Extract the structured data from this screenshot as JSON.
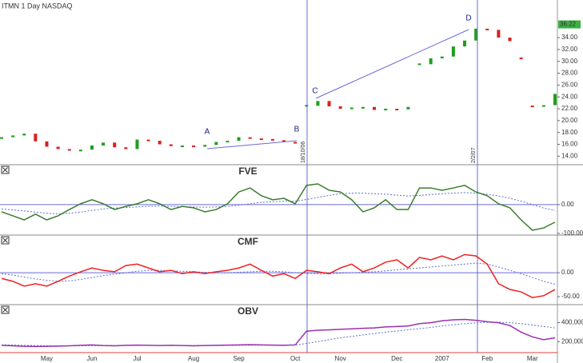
{
  "chart_data": [
    {
      "type": "bar",
      "title": "ITMN 1 Day NASDAQ",
      "categories": [
        null,
        null,
        null,
        null,
        "May",
        null,
        null,
        null,
        "Jun",
        null,
        null,
        null,
        "Jul",
        null,
        null,
        null,
        null,
        "Aug",
        null,
        null,
        null,
        "Sep",
        null,
        null,
        null,
        null,
        "Oct",
        null,
        null,
        null,
        "Nov",
        null,
        null,
        null,
        null,
        "Dec",
        null,
        null,
        null,
        "2007",
        null,
        null,
        null,
        "Feb",
        null,
        null,
        null,
        "Mar",
        null,
        null
      ],
      "values": [
        17.2,
        17.5,
        17.8,
        16.5,
        15.6,
        15.2,
        15.0,
        15.1,
        15.8,
        16.3,
        15.5,
        15.2,
        16.8,
        16.6,
        16.0,
        15.7,
        15.8,
        15.6,
        15.9,
        16.4,
        16.6,
        17.2,
        17.0,
        16.9,
        16.7,
        16.4,
        16.2,
        22.5,
        23.3,
        22.4,
        22.0,
        22.2,
        22.3,
        21.8,
        22.0,
        21.9,
        22.3,
        29.5,
        30.5,
        30.8,
        32.5,
        33.5,
        35.5,
        35.3,
        34.0,
        33.4,
        30.5,
        22.4,
        22.6,
        24.5
      ],
      "up_color": "#1f9e1f",
      "down_color": "#d92020",
      "ylim": [
        12.7,
        40.2
      ],
      "yticks": [
        {
          "value": 14,
          "label": "14.00"
        },
        {
          "value": 16,
          "label": "16.00"
        },
        {
          "value": 18,
          "label": "18.00"
        },
        {
          "value": 20,
          "label": "20.00"
        },
        {
          "value": 22,
          "label": "22.00"
        },
        {
          "value": 24,
          "label": "24.00"
        },
        {
          "value": 26,
          "label": "26.00"
        },
        {
          "value": 28,
          "label": "28.00"
        },
        {
          "value": 30,
          "label": "30.00"
        },
        {
          "value": 32,
          "label": "32.00"
        },
        {
          "value": 34,
          "label": "34.00"
        }
      ],
      "last_price": {
        "value": 36.22,
        "label": "36.22"
      },
      "annotations": [
        "A",
        "B",
        "C",
        "D"
      ],
      "events": [
        "18/10/06",
        "2/2/07"
      ]
    },
    {
      "type": "line",
      "ylim": [
        -103,
        136
      ],
      "ref_line": true,
      "yticks": [
        {
          "value": 0,
          "label": "0.00"
        },
        {
          "value": -100,
          "label": "-100.00"
        }
      ],
      "series": [
        {
          "name": "FVE",
          "color": "#3a7d2c",
          "values": [
            -25,
            -39,
            -53,
            -33,
            -53,
            -39,
            -17,
            3,
            17,
            3,
            -17,
            -6,
            3,
            17,
            3,
            -17,
            -6,
            -11,
            -25,
            -17,
            3,
            44,
            58,
            31,
            17,
            22,
            3,
            67,
            72,
            50,
            44,
            17,
            -25,
            -11,
            17,
            -17,
            -17,
            58,
            58,
            50,
            58,
            67,
            44,
            31,
            3,
            -11,
            -53,
            -89,
            -81,
            -61
          ]
        }
      ],
      "signal": {
        "color": "#5a6fd8",
        "values": [
          -15,
          -18,
          -22,
          -26,
          -30,
          -32,
          -30,
          -26,
          -20,
          -15,
          -12,
          -10,
          -8,
          -6,
          -5,
          -6,
          -7,
          -8,
          -9,
          -8,
          -6,
          -2,
          3,
          8,
          10,
          12,
          12,
          18,
          25,
          32,
          38,
          40,
          40,
          38,
          36,
          33,
          30,
          32,
          35,
          38,
          40,
          42,
          40,
          36,
          30,
          22,
          12,
          0,
          -12,
          -20
        ]
      }
    },
    {
      "type": "line",
      "ylim": [
        -65,
        77
      ],
      "ref_line": true,
      "yticks": [
        {
          "value": 0,
          "label": "0.00"
        },
        {
          "value": -50,
          "label": "-50.00"
        }
      ],
      "series": [
        {
          "name": "CMF",
          "color": "#f02020",
          "values": [
            -12,
            -18,
            -28,
            -23,
            -28,
            -18,
            -7,
            2,
            10,
            5,
            2,
            15,
            18,
            10,
            2,
            5,
            -2,
            2,
            -2,
            2,
            5,
            10,
            18,
            5,
            -7,
            -2,
            -12,
            5,
            2,
            -2,
            10,
            18,
            2,
            10,
            22,
            27,
            10,
            32,
            27,
            35,
            27,
            38,
            35,
            18,
            -23,
            -35,
            -40,
            -52,
            -48,
            -35
          ]
        }
      ],
      "signal": {
        "color": "#5a6fd8",
        "values": [
          -2,
          -5,
          -9,
          -13,
          -16,
          -18,
          -17,
          -14,
          -10,
          -6,
          -3,
          0,
          3,
          5,
          5,
          4,
          3,
          2,
          1,
          0,
          0,
          1,
          2,
          3,
          3,
          2,
          0,
          -1,
          -2,
          -2,
          -1,
          0,
          1,
          2,
          4,
          6,
          8,
          10,
          12,
          14,
          16,
          18,
          20,
          18,
          12,
          5,
          -2,
          -10,
          -18,
          -24
        ]
      }
    },
    {
      "type": "line",
      "ylim": [
        83000,
        583000
      ],
      "ref_line": false,
      "yticks": [
        {
          "value": 200000,
          "label": "200,000"
        },
        {
          "value": 400000,
          "label": "400,000"
        }
      ],
      "series": [
        {
          "name": "OBV",
          "color": "#9b30b0",
          "values": [
            160000,
            155000,
            150000,
            148000,
            150000,
            152000,
            155000,
            160000,
            165000,
            158000,
            155000,
            160000,
            162000,
            160000,
            158000,
            160000,
            158000,
            155000,
            158000,
            160000,
            162000,
            165000,
            168000,
            165000,
            162000,
            160000,
            165000,
            310000,
            320000,
            325000,
            330000,
            335000,
            340000,
            345000,
            355000,
            360000,
            365000,
            390000,
            400000,
            420000,
            430000,
            435000,
            425000,
            410000,
            400000,
            370000,
            300000,
            250000,
            220000,
            240000
          ]
        }
      ],
      "signal": {
        "color": "#5a6fd8",
        "values": [
          165000,
          163000,
          160000,
          158000,
          156000,
          155000,
          155000,
          156000,
          157000,
          158000,
          158000,
          158000,
          159000,
          159000,
          159000,
          159000,
          159000,
          158000,
          158000,
          158000,
          159000,
          160000,
          161000,
          162000,
          162000,
          162000,
          163000,
          180000,
          200000,
          220000,
          240000,
          255000,
          270000,
          285000,
          300000,
          312000,
          325000,
          337000,
          350000,
          365000,
          378000,
          390000,
          398000,
          404000,
          405000,
          400000,
          390000,
          375000,
          360000,
          345000
        ]
      }
    }
  ]
}
